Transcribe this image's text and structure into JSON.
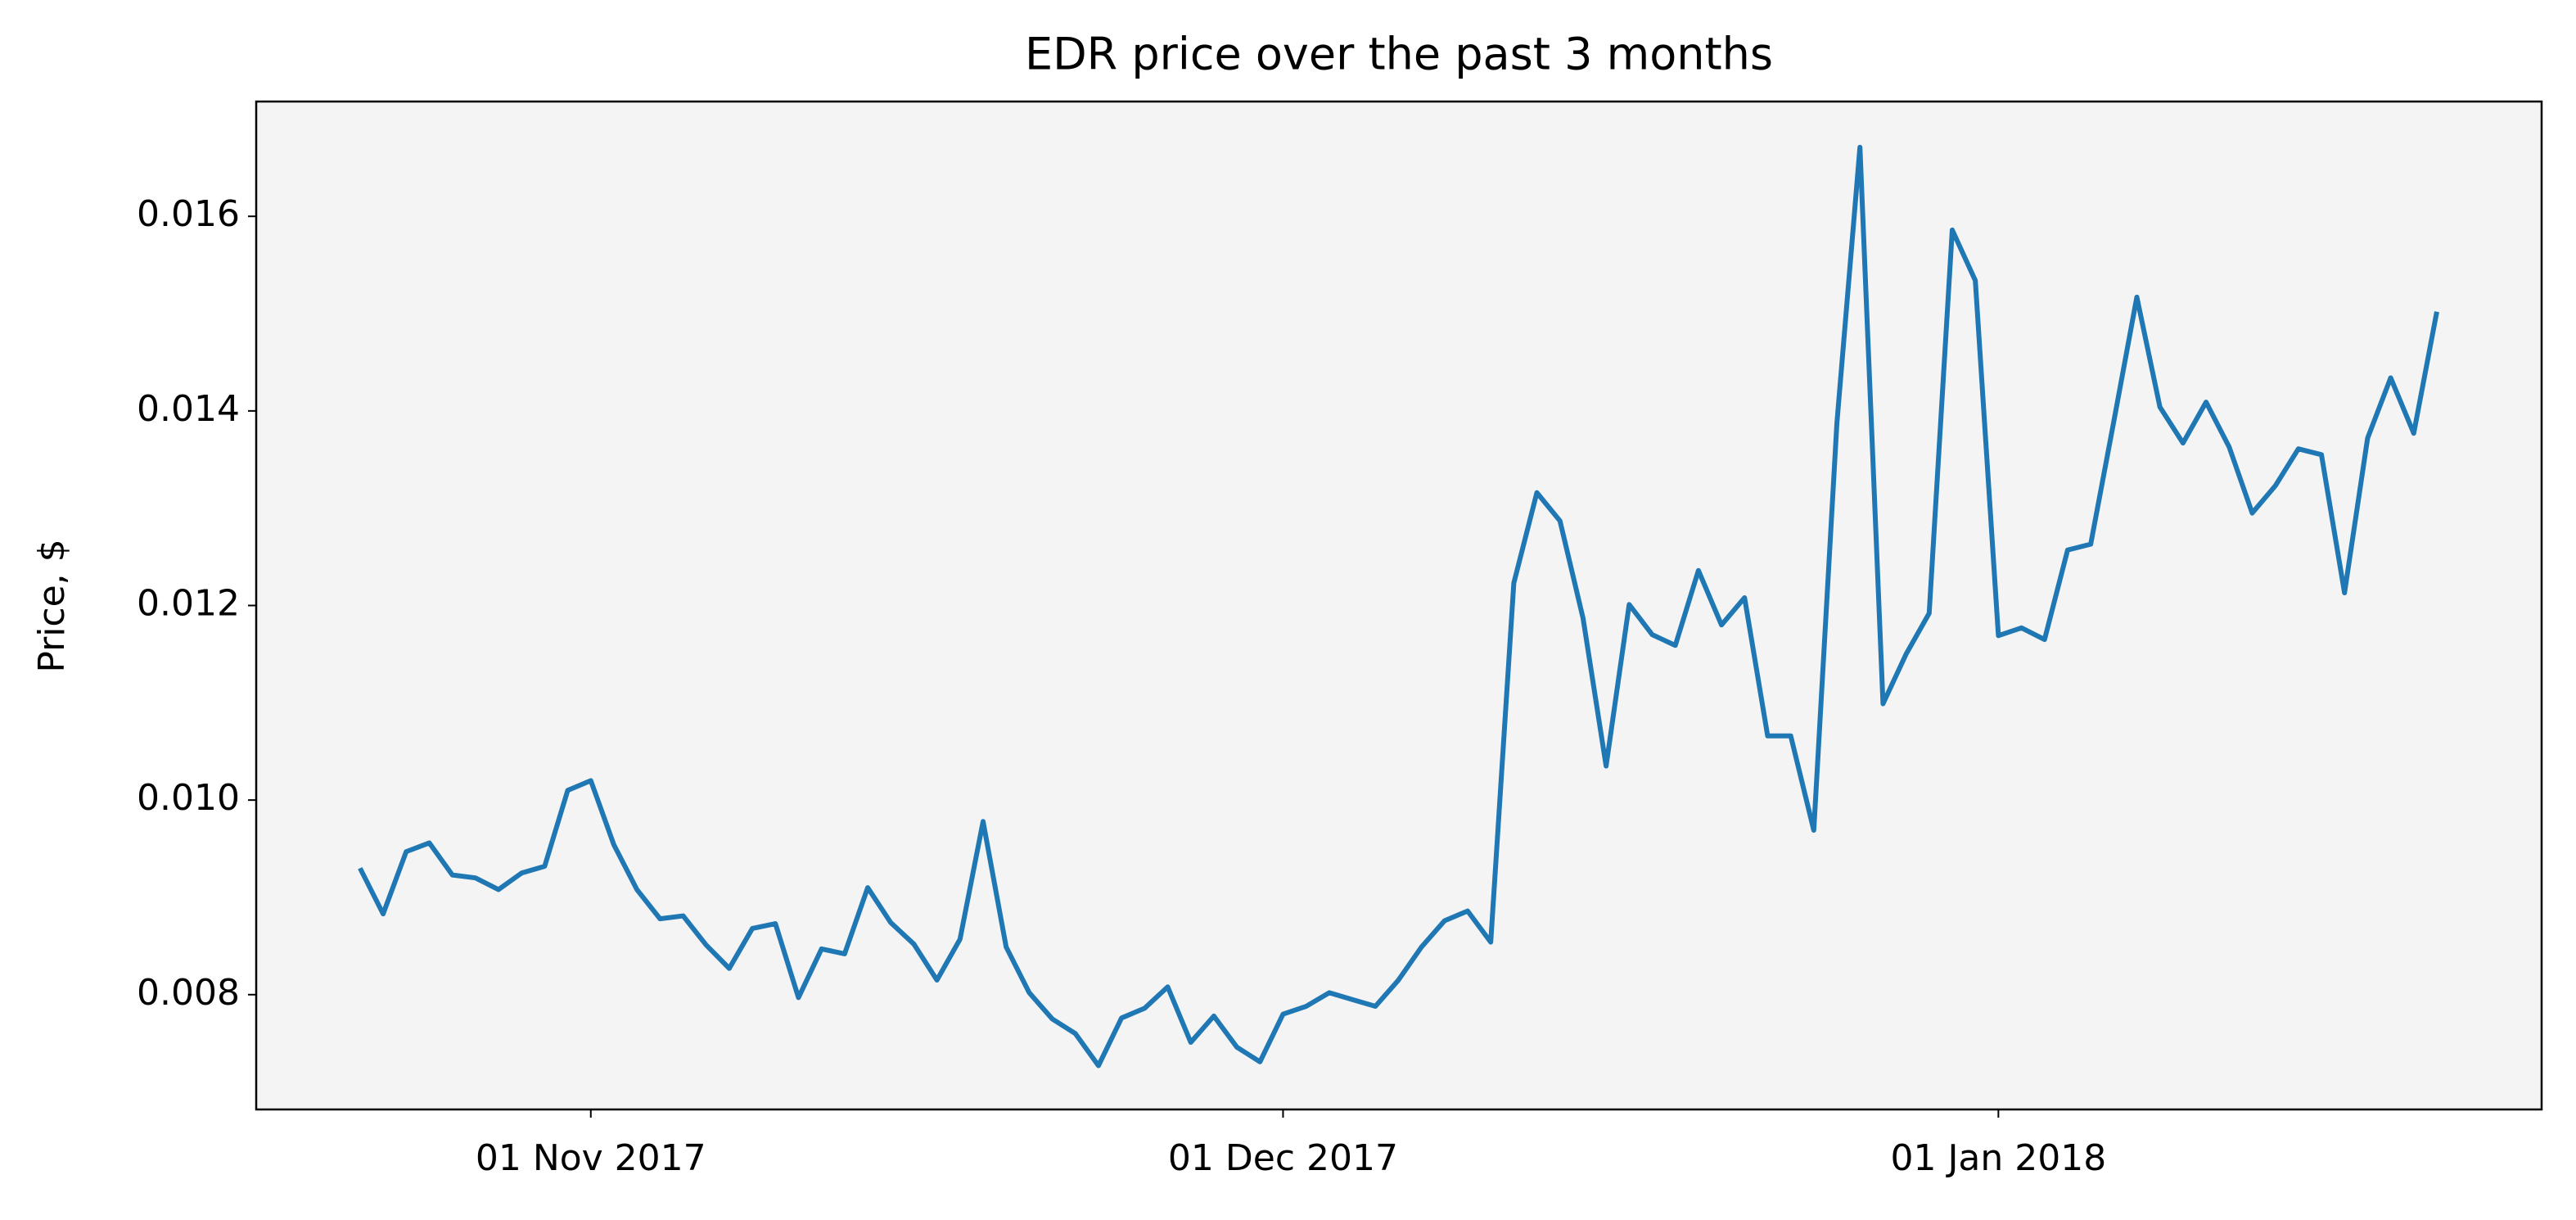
{
  "chart_data": {
    "type": "line",
    "title": "EDR price over the past 3 months",
    "y_label": "Price, $",
    "x": [
      "2017-10-22",
      "2017-10-23",
      "2017-10-24",
      "2017-10-25",
      "2017-10-26",
      "2017-10-27",
      "2017-10-28",
      "2017-10-29",
      "2017-10-30",
      "2017-10-31",
      "2017-11-01",
      "2017-11-02",
      "2017-11-03",
      "2017-11-04",
      "2017-11-05",
      "2017-11-06",
      "2017-11-07",
      "2017-11-08",
      "2017-11-09",
      "2017-11-10",
      "2017-11-11",
      "2017-11-12",
      "2017-11-13",
      "2017-11-14",
      "2017-11-15",
      "2017-11-16",
      "2017-11-17",
      "2017-11-18",
      "2017-11-19",
      "2017-11-20",
      "2017-11-21",
      "2017-11-22",
      "2017-11-23",
      "2017-11-24",
      "2017-11-25",
      "2017-11-26",
      "2017-11-27",
      "2017-11-28",
      "2017-11-29",
      "2017-11-30",
      "2017-12-01",
      "2017-12-02",
      "2017-12-03",
      "2017-12-04",
      "2017-12-05",
      "2017-12-06",
      "2017-12-07",
      "2017-12-08",
      "2017-12-09",
      "2017-12-10",
      "2017-12-11",
      "2017-12-12",
      "2017-12-13",
      "2017-12-14",
      "2017-12-15",
      "2017-12-16",
      "2017-12-17",
      "2017-12-18",
      "2017-12-19",
      "2017-12-20",
      "2017-12-21",
      "2017-12-22",
      "2017-12-23",
      "2017-12-24",
      "2017-12-25",
      "2017-12-26",
      "2017-12-27",
      "2017-12-28",
      "2017-12-29",
      "2017-12-30",
      "2017-12-31",
      "2018-01-01",
      "2018-01-02",
      "2018-01-03",
      "2018-01-04",
      "2018-01-05",
      "2018-01-06",
      "2018-01-07",
      "2018-01-08",
      "2018-01-09",
      "2018-01-10",
      "2018-01-11",
      "2018-01-12",
      "2018-01-13",
      "2018-01-14",
      "2018-01-15",
      "2018-01-16",
      "2018-01-17",
      "2018-01-18",
      "2018-01-19",
      "2018-01-20"
    ],
    "series": [
      {
        "name": "EDR",
        "color": "#1f77b4",
        "values": [
          0.0093,
          0.00883,
          0.00947,
          0.00956,
          0.00923,
          0.0092,
          0.00908,
          0.00925,
          0.00932,
          0.0101,
          0.0102,
          0.00954,
          0.00908,
          0.00878,
          0.00881,
          0.00851,
          0.00827,
          0.00868,
          0.00873,
          0.00797,
          0.00847,
          0.00842,
          0.0091,
          0.00874,
          0.00852,
          0.00815,
          0.00857,
          0.00978,
          0.00849,
          0.00802,
          0.00775,
          0.0076,
          0.00727,
          0.00776,
          0.00786,
          0.00808,
          0.00751,
          0.00778,
          0.00746,
          0.00731,
          0.0078,
          0.00788,
          0.00802,
          0.00795,
          0.00788,
          0.00815,
          0.00849,
          0.00876,
          0.00886,
          0.00854,
          0.01223,
          0.01316,
          0.01287,
          0.01187,
          0.01035,
          0.01201,
          0.0117,
          0.01159,
          0.01236,
          0.0118,
          0.01208,
          0.01066,
          0.01066,
          0.00969,
          0.01387,
          0.01671,
          0.01099,
          0.0115,
          0.01192,
          0.01586,
          0.01534,
          0.01169,
          0.01177,
          0.01165,
          0.01257,
          0.01263,
          0.01389,
          0.01517,
          0.01404,
          0.01367,
          0.01409,
          0.01363,
          0.01295,
          0.01323,
          0.01361,
          0.01355,
          0.01213,
          0.01372,
          0.01434,
          0.01377,
          0.01502
        ]
      }
    ],
    "xlim": [
      "2017-10-17T12:00:00Z",
      "2018-01-24T13:00:00Z"
    ],
    "xticks": [
      {
        "value": "2017-11-01",
        "label": "01 Nov 2017"
      },
      {
        "value": "2017-12-01",
        "label": "01 Dec 2017"
      },
      {
        "value": "2018-01-01",
        "label": "01 Jan 2018"
      }
    ],
    "ylim": [
      0.00682,
      0.01718
    ],
    "yticks": [
      {
        "value": 0.008,
        "label": "0.008"
      },
      {
        "value": 0.01,
        "label": "0.010"
      },
      {
        "value": 0.012,
        "label": "0.012"
      },
      {
        "value": 0.014,
        "label": "0.014"
      },
      {
        "value": 0.016,
        "label": "0.016"
      }
    ],
    "grid": false,
    "background": "#f4f4f4"
  }
}
